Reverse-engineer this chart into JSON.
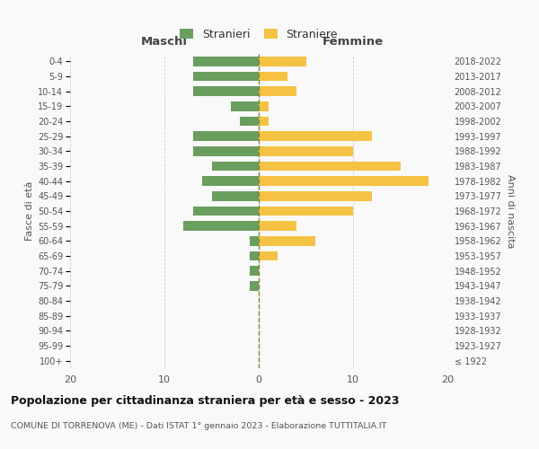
{
  "age_groups": [
    "100+",
    "95-99",
    "90-94",
    "85-89",
    "80-84",
    "75-79",
    "70-74",
    "65-69",
    "60-64",
    "55-59",
    "50-54",
    "45-49",
    "40-44",
    "35-39",
    "30-34",
    "25-29",
    "20-24",
    "15-19",
    "10-14",
    "5-9",
    "0-4"
  ],
  "birth_years": [
    "≤ 1922",
    "1923-1927",
    "1928-1932",
    "1933-1937",
    "1938-1942",
    "1943-1947",
    "1948-1952",
    "1953-1957",
    "1958-1962",
    "1963-1967",
    "1968-1972",
    "1973-1977",
    "1978-1982",
    "1983-1987",
    "1988-1992",
    "1993-1997",
    "1998-2002",
    "2003-2007",
    "2008-2012",
    "2013-2017",
    "2018-2022"
  ],
  "males": [
    0,
    0,
    0,
    0,
    0,
    1,
    1,
    1,
    1,
    8,
    7,
    5,
    6,
    5,
    7,
    7,
    2,
    3,
    7,
    7,
    7
  ],
  "females": [
    0,
    0,
    0,
    0,
    0,
    0,
    0,
    2,
    6,
    4,
    10,
    12,
    18,
    15,
    10,
    12,
    1,
    1,
    4,
    3,
    5
  ],
  "male_color": "#6a9e5e",
  "female_color": "#f5c244",
  "background_color": "#f9f9f9",
  "grid_color": "#cccccc",
  "center_line_color": "#888833",
  "title_main": "Popolazione per cittadinanza straniera per età e sesso - 2023",
  "title_sub": "COMUNE DI TORRENOVA (ME) - Dati ISTAT 1° gennaio 2023 - Elaborazione TUTTITALIA.IT",
  "label_maschi": "Maschi",
  "label_femmine": "Femmine",
  "label_fasce": "Fasce di età",
  "label_anni": "Anni di nascita",
  "legend_stranieri": "Stranieri",
  "legend_straniere": "Straniere",
  "xlim": 20
}
